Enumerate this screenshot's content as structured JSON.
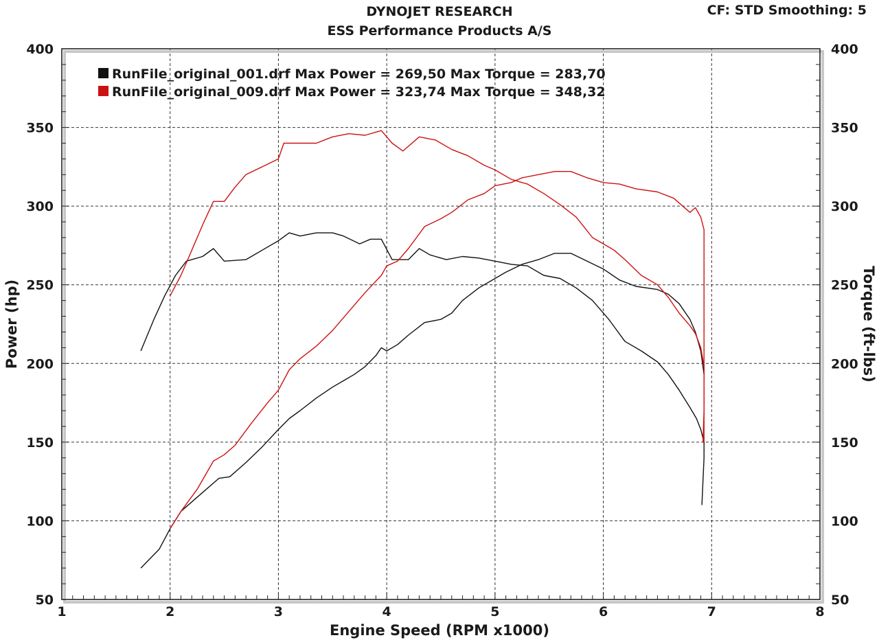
{
  "header": {
    "title": "DYNOJET RESEARCH",
    "subtitle": "ESS Performance Products A/S",
    "settings": "CF: STD  Smoothing: 5"
  },
  "chart_data": {
    "type": "line",
    "xlabel": "Engine Speed (RPM x1000)",
    "ylabel_left": "Power (hp)",
    "ylabel_right": "Torque (ft-lbs)",
    "xlim": [
      1,
      8
    ],
    "ylim": [
      50,
      400
    ],
    "x_ticks": [
      "1",
      "2",
      "3",
      "4",
      "5",
      "6",
      "7",
      "8"
    ],
    "y_ticks": [
      "50",
      "100",
      "150",
      "200",
      "250",
      "300",
      "350",
      "400"
    ],
    "grid": true,
    "legend": [
      {
        "color": "#111111",
        "label": "RunFile_original_001.drf Max Power = 269,50    Max Torque = 283,70"
      },
      {
        "color": "#cc1111",
        "label": "RunFile_original_009.drf Max Power = 323,74    Max Torque = 348,32"
      }
    ],
    "series": [
      {
        "color": "#111111",
        "points": [
          [
            1.73,
            70
          ],
          [
            1.9,
            82
          ],
          [
            2.0,
            95
          ],
          [
            2.1,
            106
          ],
          [
            2.3,
            118
          ],
          [
            2.45,
            127
          ],
          [
            2.55,
            128
          ],
          [
            2.7,
            137
          ],
          [
            2.85,
            147
          ],
          [
            3.0,
            158
          ],
          [
            3.1,
            165
          ],
          [
            3.2,
            170
          ],
          [
            3.35,
            178
          ],
          [
            3.5,
            185
          ],
          [
            3.6,
            189
          ],
          [
            3.7,
            193
          ],
          [
            3.8,
            198
          ],
          [
            3.9,
            205
          ],
          [
            3.95,
            210
          ],
          [
            4.0,
            208
          ],
          [
            4.1,
            212
          ],
          [
            4.2,
            218
          ],
          [
            4.35,
            226
          ],
          [
            4.5,
            228
          ],
          [
            4.6,
            232
          ],
          [
            4.7,
            240
          ],
          [
            4.85,
            248
          ],
          [
            5.0,
            254
          ],
          [
            5.1,
            258
          ],
          [
            5.25,
            263
          ],
          [
            5.4,
            266
          ],
          [
            5.55,
            270
          ],
          [
            5.7,
            270
          ],
          [
            5.85,
            265
          ],
          [
            6.0,
            260
          ],
          [
            6.15,
            253
          ],
          [
            6.3,
            249
          ],
          [
            6.5,
            247
          ],
          [
            6.6,
            244
          ],
          [
            6.7,
            238
          ],
          [
            6.8,
            228
          ],
          [
            6.85,
            220
          ],
          [
            6.9,
            208
          ],
          [
            6.93,
            193
          ]
        ]
      },
      {
        "color": "#111111",
        "points": [
          [
            1.73,
            208
          ],
          [
            1.85,
            228
          ],
          [
            1.95,
            243
          ],
          [
            2.05,
            256
          ],
          [
            2.15,
            265
          ],
          [
            2.3,
            268
          ],
          [
            2.4,
            273
          ],
          [
            2.5,
            265
          ],
          [
            2.7,
            266
          ],
          [
            2.85,
            272
          ],
          [
            3.0,
            278
          ],
          [
            3.1,
            283
          ],
          [
            3.2,
            281
          ],
          [
            3.35,
            283
          ],
          [
            3.5,
            283
          ],
          [
            3.6,
            281
          ],
          [
            3.75,
            276
          ],
          [
            3.85,
            279
          ],
          [
            3.95,
            279
          ],
          [
            4.05,
            266
          ],
          [
            4.2,
            266
          ],
          [
            4.3,
            273
          ],
          [
            4.4,
            269
          ],
          [
            4.55,
            266
          ],
          [
            4.7,
            268
          ],
          [
            4.85,
            267
          ],
          [
            5.0,
            265
          ],
          [
            5.15,
            263
          ],
          [
            5.3,
            262
          ],
          [
            5.45,
            256
          ],
          [
            5.6,
            254
          ],
          [
            5.75,
            248
          ],
          [
            5.9,
            240
          ],
          [
            6.05,
            228
          ],
          [
            6.2,
            214
          ],
          [
            6.35,
            208
          ],
          [
            6.5,
            201
          ],
          [
            6.6,
            193
          ],
          [
            6.7,
            183
          ],
          [
            6.8,
            172
          ],
          [
            6.86,
            165
          ],
          [
            6.9,
            158
          ],
          [
            6.93,
            150
          ],
          [
            6.93,
            140
          ],
          [
            6.91,
            110
          ]
        ]
      },
      {
        "color": "#cc1111",
        "points": [
          [
            2.0,
            95
          ],
          [
            2.1,
            106
          ],
          [
            2.25,
            120
          ],
          [
            2.4,
            138
          ],
          [
            2.5,
            142
          ],
          [
            2.6,
            148
          ],
          [
            2.75,
            162
          ],
          [
            2.9,
            175
          ],
          [
            3.0,
            183
          ],
          [
            3.1,
            196
          ],
          [
            3.2,
            203
          ],
          [
            3.35,
            211
          ],
          [
            3.5,
            221
          ],
          [
            3.65,
            233
          ],
          [
            3.8,
            245
          ],
          [
            3.95,
            256
          ],
          [
            4.0,
            262
          ],
          [
            4.1,
            265
          ],
          [
            4.2,
            273
          ],
          [
            4.35,
            287
          ],
          [
            4.5,
            292
          ],
          [
            4.6,
            296
          ],
          [
            4.75,
            304
          ],
          [
            4.9,
            308
          ],
          [
            5.0,
            313
          ],
          [
            5.15,
            315
          ],
          [
            5.25,
            318
          ],
          [
            5.4,
            320
          ],
          [
            5.55,
            322
          ],
          [
            5.7,
            322
          ],
          [
            5.85,
            318
          ],
          [
            6.0,
            315
          ],
          [
            6.15,
            314
          ],
          [
            6.3,
            311
          ],
          [
            6.5,
            309
          ],
          [
            6.65,
            305
          ],
          [
            6.8,
            296
          ],
          [
            6.85,
            299
          ],
          [
            6.9,
            293
          ],
          [
            6.93,
            285
          ],
          [
            6.93,
            170
          ],
          [
            6.92,
            150
          ]
        ]
      },
      {
        "color": "#cc1111",
        "points": [
          [
            2.0,
            243
          ],
          [
            2.1,
            256
          ],
          [
            2.2,
            272
          ],
          [
            2.3,
            288
          ],
          [
            2.4,
            303
          ],
          [
            2.5,
            303
          ],
          [
            2.6,
            312
          ],
          [
            2.7,
            320
          ],
          [
            2.85,
            325
          ],
          [
            3.0,
            330
          ],
          [
            3.05,
            340
          ],
          [
            3.2,
            340
          ],
          [
            3.35,
            340
          ],
          [
            3.5,
            344
          ],
          [
            3.65,
            346
          ],
          [
            3.8,
            345
          ],
          [
            3.9,
            347
          ],
          [
            3.95,
            348
          ],
          [
            4.05,
            340
          ],
          [
            4.15,
            335
          ],
          [
            4.3,
            344
          ],
          [
            4.45,
            342
          ],
          [
            4.6,
            336
          ],
          [
            4.75,
            332
          ],
          [
            4.9,
            326
          ],
          [
            5.0,
            323
          ],
          [
            5.15,
            317
          ],
          [
            5.3,
            314
          ],
          [
            5.45,
            308
          ],
          [
            5.6,
            301
          ],
          [
            5.75,
            293
          ],
          [
            5.9,
            280
          ],
          [
            6.0,
            276
          ],
          [
            6.1,
            272
          ],
          [
            6.2,
            266
          ],
          [
            6.35,
            256
          ],
          [
            6.5,
            250
          ],
          [
            6.6,
            242
          ],
          [
            6.7,
            232
          ],
          [
            6.8,
            224
          ],
          [
            6.85,
            219
          ],
          [
            6.9,
            210
          ],
          [
            6.93,
            198
          ],
          [
            6.93,
            150
          ]
        ]
      }
    ]
  }
}
